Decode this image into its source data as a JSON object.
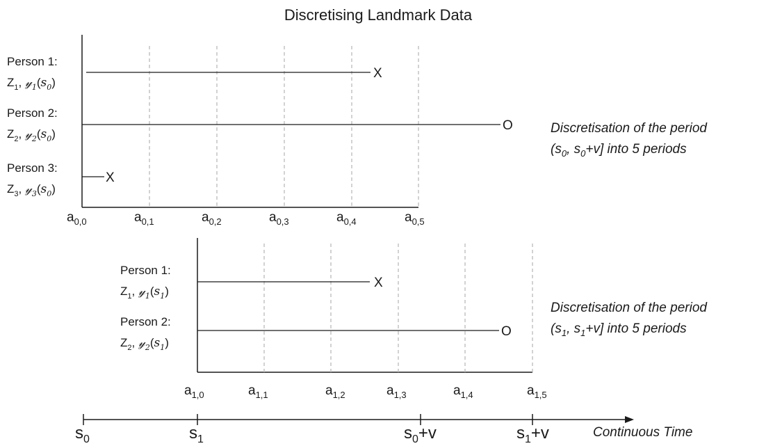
{
  "title": "Discretising Landmark Data",
  "panels": [
    {
      "id": "s0",
      "people": [
        {
          "heading": "Person 1:",
          "cov": "Z",
          "idx": "1",
          "y": "𝓎",
          "yidx": "1",
          "s": "s",
          "sidx": "0",
          "outcome": "X"
        },
        {
          "heading": "Person 2:",
          "cov": "Z",
          "idx": "2",
          "y": "𝓎",
          "yidx": "2",
          "s": "s",
          "sidx": "0",
          "outcome": "O"
        },
        {
          "heading": "Person 3:",
          "cov": "Z",
          "idx": "3",
          "y": "𝓎",
          "yidx": "3",
          "s": "s",
          "sidx": "0",
          "outcome": "X"
        }
      ],
      "ticks": [
        {
          "base": "a",
          "sub": "0,0"
        },
        {
          "base": "a",
          "sub": "0,1"
        },
        {
          "base": "a",
          "sub": "0,2"
        },
        {
          "base": "a",
          "sub": "0,3"
        },
        {
          "base": "a",
          "sub": "0,4"
        },
        {
          "base": "a",
          "sub": "0,5"
        }
      ],
      "note": {
        "line1": "Discretisation of the period",
        "open": "(s",
        "sub1": "0",
        "comma": ", s",
        "sub2": "0",
        "close": "+v] into 5 periods"
      }
    },
    {
      "id": "s1",
      "people": [
        {
          "heading": "Person 1:",
          "cov": "Z",
          "idx": "1",
          "y": "𝓎",
          "yidx": "1",
          "s": "s",
          "sidx": "1",
          "outcome": "X"
        },
        {
          "heading": "Person 2:",
          "cov": "Z",
          "idx": "2",
          "y": "𝓎",
          "yidx": "2",
          "s": "s",
          "sidx": "1",
          "outcome": "O"
        }
      ],
      "ticks": [
        {
          "base": "a",
          "sub": "1,0"
        },
        {
          "base": "a",
          "sub": "1,1"
        },
        {
          "base": "a",
          "sub": "1,2"
        },
        {
          "base": "a",
          "sub": "1,3"
        },
        {
          "base": "a",
          "sub": "1,4"
        },
        {
          "base": "a",
          "sub": "1,5"
        }
      ],
      "note": {
        "line1": "Discretisation of the period",
        "open": "(s",
        "sub1": "1",
        "comma": ", s",
        "sub2": "1",
        "close": "+v] into 5 periods"
      }
    }
  ],
  "timeline": {
    "label": "Continuous Time",
    "marks": [
      {
        "base": "s",
        "sub": "0",
        "suffix": ""
      },
      {
        "base": "s",
        "sub": "1",
        "suffix": ""
      },
      {
        "base": "s",
        "sub": "0",
        "suffix": "+v"
      },
      {
        "base": "s",
        "sub": "1",
        "suffix": "+v"
      }
    ]
  }
}
